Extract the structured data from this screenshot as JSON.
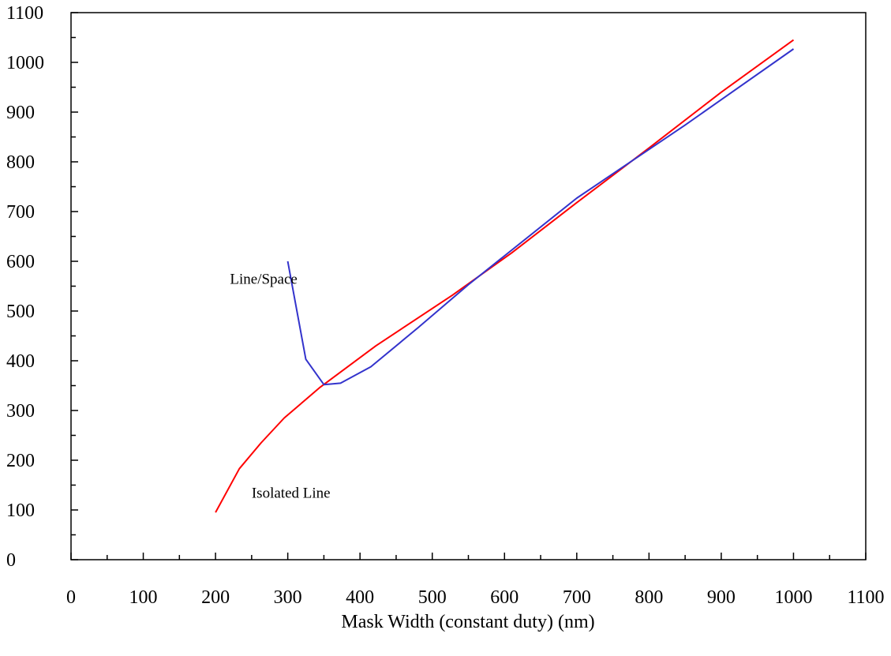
{
  "chart_data": {
    "type": "line",
    "title": "",
    "xlabel": "Mask Width (constant duty) (nm)",
    "ylabel": "",
    "xlim": [
      0,
      1100
    ],
    "ylim": [
      0,
      1100
    ],
    "xticks": [
      0,
      100,
      200,
      300,
      400,
      500,
      600,
      700,
      800,
      900,
      1000,
      1100
    ],
    "yticks": [
      0,
      100,
      200,
      300,
      400,
      500,
      600,
      700,
      800,
      900,
      1000,
      1100
    ],
    "x_tick_labels": [
      "0",
      "100",
      "200",
      "300",
      "400",
      "500",
      "600",
      "700",
      "800",
      "900",
      "1000",
      "1100"
    ],
    "y_tick_labels": [
      "0",
      "100",
      "200",
      "300",
      "400",
      "500",
      "600",
      "700",
      "800",
      "900",
      "1000",
      "1100"
    ],
    "grid": false,
    "series": [
      {
        "name": "Isolated Line",
        "color": "#ff0000",
        "points": [
          [
            200,
            95
          ],
          [
            233,
            183
          ],
          [
            263,
            235
          ],
          [
            295,
            285
          ],
          [
            345,
            347
          ],
          [
            422,
            430
          ],
          [
            528,
            532
          ],
          [
            610,
            617
          ],
          [
            700,
            718
          ],
          [
            800,
            828
          ],
          [
            900,
            940
          ],
          [
            1000,
            1045
          ]
        ]
      },
      {
        "name": "Line/Space",
        "color": "#3333cc",
        "points": [
          [
            300,
            600
          ],
          [
            325,
            403
          ],
          [
            350,
            352
          ],
          [
            373,
            355
          ],
          [
            415,
            388
          ],
          [
            480,
            466
          ],
          [
            550,
            553
          ],
          [
            700,
            727
          ],
          [
            850,
            874
          ],
          [
            1000,
            1027
          ]
        ]
      }
    ],
    "annotations": [
      {
        "text": "Line/Space",
        "x": 220,
        "y": 555
      },
      {
        "text": "Isolated Line",
        "x": 250,
        "y": 125
      }
    ]
  }
}
